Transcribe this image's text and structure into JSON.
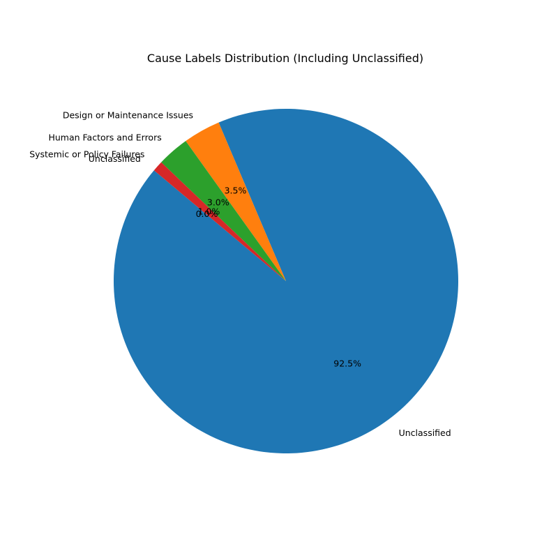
{
  "chart_data": {
    "type": "pie",
    "title": "Cause Labels Distribution (Including Unclassified)",
    "start_angle_deg": 140,
    "direction": "counterclockwise",
    "slices": [
      {
        "label": "Unclassified",
        "value": 92.5,
        "pct_label": "92.5%",
        "color": "#1f77b4"
      },
      {
        "label": "Design or Maintenance Issues",
        "value": 3.5,
        "pct_label": "3.5%",
        "color": "#ff7f0e"
      },
      {
        "label": "Human Factors and Errors",
        "value": 3.0,
        "pct_label": "3.0%",
        "color": "#2ca02c"
      },
      {
        "label": "Systemic or Policy Failures",
        "value": 1.0,
        "pct_label": "1.0%",
        "color": "#d62728"
      },
      {
        "label": "Unclassified",
        "value": 0.0,
        "pct_label": "0.0%",
        "color": "#9467bd"
      }
    ]
  }
}
